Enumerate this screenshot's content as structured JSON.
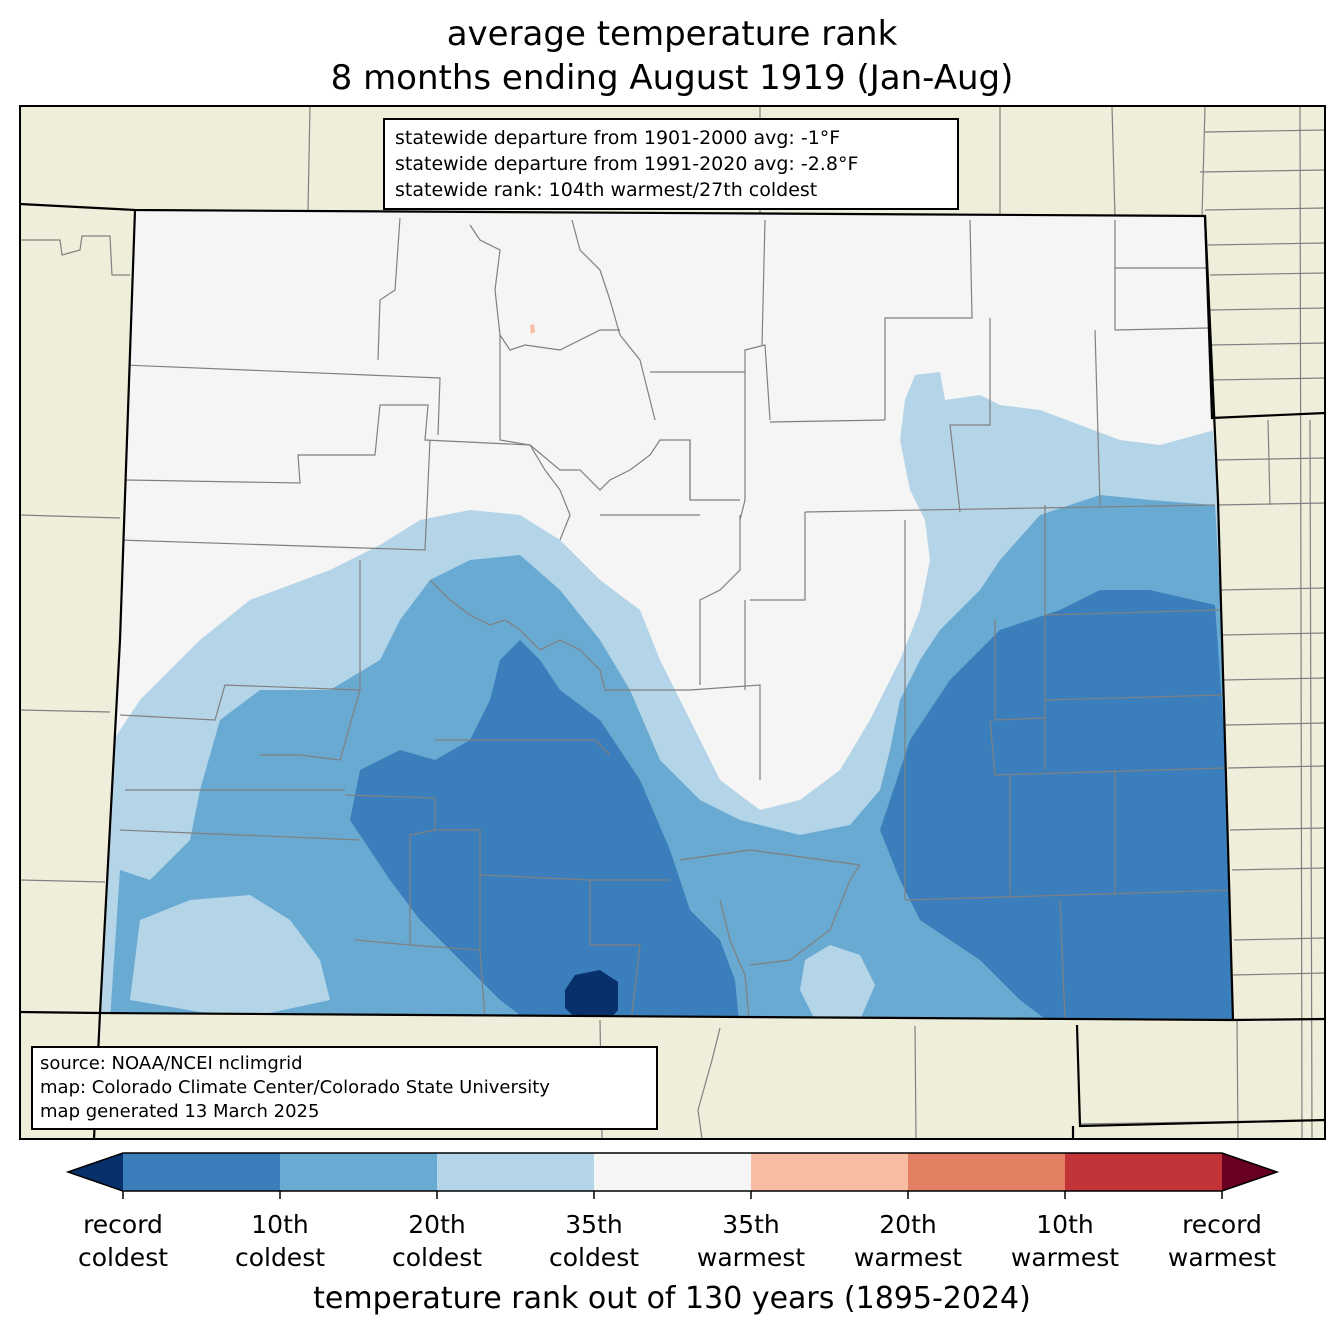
{
  "title": {
    "line1": "average temperature rank",
    "line2": "8 months ending August 1919 (Jan-Aug)"
  },
  "stats": {
    "dep_1901_2000": "statewide departure from 1901-2000 avg: -1°F",
    "dep_1991_2020": "statewide departure from 1991-2020 avg: -2.8°F",
    "rank": "statewide rank: 104th warmest/27th coldest"
  },
  "source": {
    "line1": "source: NOAA/NCEI nclimgrid",
    "line2": "map: Colorado Climate Center/Colorado State University",
    "line3": "map generated 13 March 2025"
  },
  "colorbar": {
    "title": "temperature rank out of 130 years (1895-2024)",
    "bins": [
      "#08306b",
      "#3a7ebb",
      "#69aad2",
      "#b4d4e8",
      "#f5f5f5",
      "#f7bca2",
      "#e37f63",
      "#c13539",
      "#6a0021"
    ],
    "labels": [
      {
        "l1": "record",
        "l2": "coldest"
      },
      {
        "l1": "10th",
        "l2": "coldest"
      },
      {
        "l1": "20th",
        "l2": "coldest"
      },
      {
        "l1": "35th",
        "l2": "coldest"
      },
      {
        "l1": "35th",
        "l2": "warmest"
      },
      {
        "l1": "20th",
        "l2": "warmest"
      },
      {
        "l1": "10th",
        "l2": "warmest"
      },
      {
        "l1": "record",
        "l2": "warmest"
      }
    ]
  },
  "colors": {
    "land": "#efeedb",
    "border": "#000000",
    "county": "#808080"
  }
}
